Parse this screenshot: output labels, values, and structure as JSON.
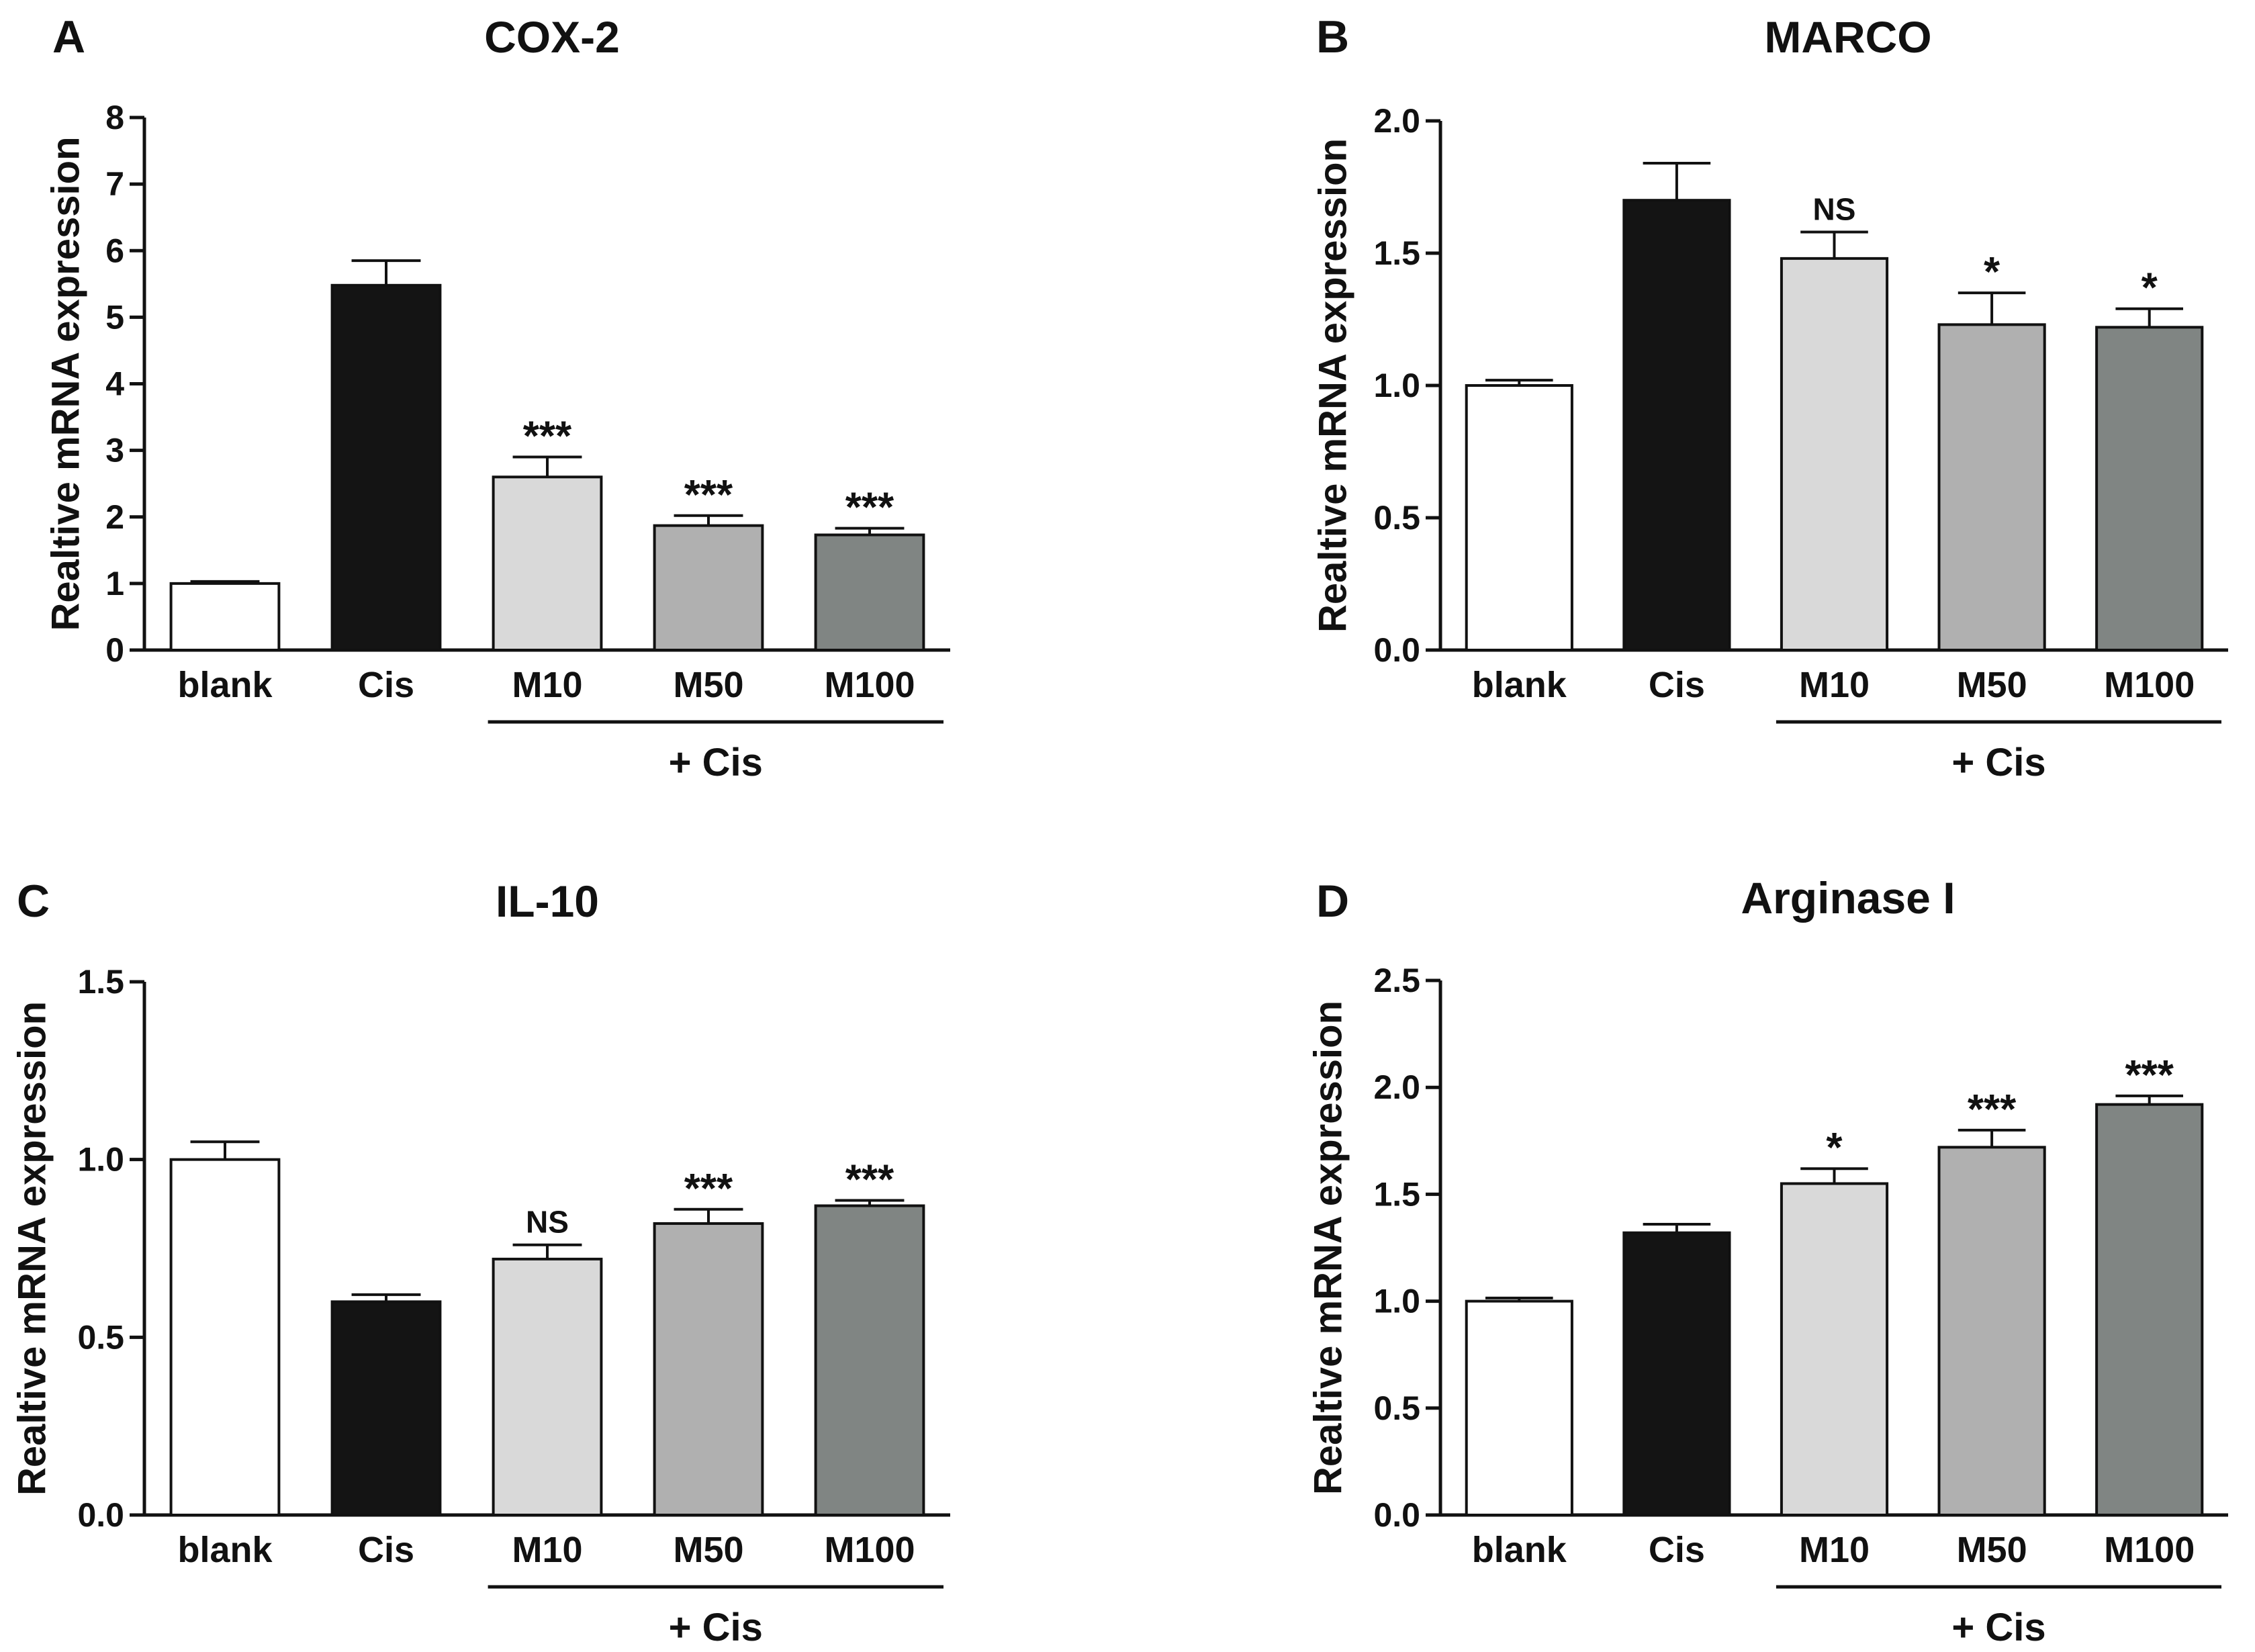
{
  "chart_data": [
    {
      "type": "bar",
      "panel": "A",
      "title": "COX-2",
      "ylabel": "Realtive mRNA expression",
      "xlabel": "",
      "categories": [
        "blank",
        "Cis",
        "M10",
        "M50",
        "M100"
      ],
      "group_label": "+ Cis",
      "values": [
        1.0,
        5.48,
        2.6,
        1.87,
        1.73
      ],
      "errors": [
        0.03,
        0.37,
        0.3,
        0.15,
        0.1
      ],
      "significance": [
        "",
        "",
        "***",
        "***",
        "***"
      ],
      "bar_colors": [
        "#ffffff",
        "#141414",
        "#d9d9d9",
        "#b0b0b0",
        "#808583"
      ],
      "ylim": [
        0,
        8
      ],
      "yticks": [
        "0",
        "1",
        "2",
        "3",
        "4",
        "5",
        "6",
        "7",
        "8"
      ],
      "grid": false,
      "legend": "none"
    },
    {
      "type": "bar",
      "panel": "B",
      "title": "MARCO",
      "ylabel": "Realtive mRNA expression",
      "xlabel": "",
      "categories": [
        "blank",
        "Cis",
        "M10",
        "M50",
        "M100"
      ],
      "group_label": "+ Cis",
      "values": [
        1.0,
        1.7,
        1.48,
        1.23,
        1.22
      ],
      "errors": [
        0.02,
        0.14,
        0.1,
        0.12,
        0.07
      ],
      "significance": [
        "",
        "",
        "NS",
        "*",
        "*"
      ],
      "bar_colors": [
        "#ffffff",
        "#141414",
        "#d9d9d9",
        "#b0b0b0",
        "#808583"
      ],
      "ylim": [
        0,
        2.0
      ],
      "yticks": [
        "0.0",
        "0.5",
        "1.0",
        "1.5",
        "2.0"
      ],
      "grid": false,
      "legend": "none"
    },
    {
      "type": "bar",
      "panel": "C",
      "title": "IL-10",
      "ylabel": "Realtive mRNA expression",
      "xlabel": "",
      "categories": [
        "blank",
        "Cis",
        "M10",
        "M50",
        "M100"
      ],
      "group_label": "+ Cis",
      "values": [
        1.0,
        0.6,
        0.72,
        0.82,
        0.87
      ],
      "errors": [
        0.05,
        0.02,
        0.04,
        0.04,
        0.015
      ],
      "significance": [
        "",
        "",
        "NS",
        "***",
        "***"
      ],
      "bar_colors": [
        "#ffffff",
        "#141414",
        "#d9d9d9",
        "#b0b0b0",
        "#808583"
      ],
      "ylim": [
        0,
        1.5
      ],
      "yticks": [
        "0.0",
        "0.5",
        "1.0",
        "1.5"
      ],
      "grid": false,
      "legend": "none"
    },
    {
      "type": "bar",
      "panel": "D",
      "title": "Arginase I",
      "ylabel": "Realtive mRNA expression",
      "xlabel": "",
      "categories": [
        "blank",
        "Cis",
        "M10",
        "M50",
        "M100"
      ],
      "group_label": "+ Cis",
      "values": [
        1.0,
        1.32,
        1.55,
        1.72,
        1.92
      ],
      "errors": [
        0.015,
        0.04,
        0.07,
        0.08,
        0.04
      ],
      "significance": [
        "",
        "",
        "*",
        "***",
        "***"
      ],
      "bar_colors": [
        "#ffffff",
        "#141414",
        "#d9d9d9",
        "#b0b0b0",
        "#808583"
      ],
      "ylim": [
        0,
        2.5
      ],
      "yticks": [
        "0.0",
        "0.5",
        "1.0",
        "1.5",
        "2.0",
        "2.5"
      ],
      "grid": false,
      "legend": "none"
    }
  ]
}
